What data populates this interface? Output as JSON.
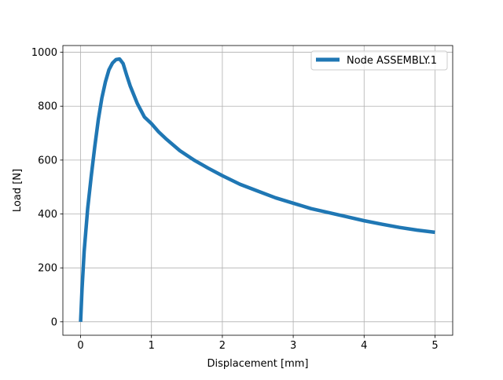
{
  "chart_data": {
    "type": "line",
    "title": "",
    "xlabel": "Displacement [mm]",
    "ylabel": "Load [N]",
    "xlim": [
      -0.25,
      5.25
    ],
    "ylim": [
      -50,
      1025
    ],
    "xticks": [
      0,
      1,
      2,
      3,
      4,
      5
    ],
    "yticks": [
      0,
      200,
      400,
      600,
      800,
      1000
    ],
    "xtick_labels": [
      "0",
      "1",
      "2",
      "3",
      "4",
      "5"
    ],
    "ytick_labels": [
      "0",
      "200",
      "400",
      "600",
      "800",
      "1000"
    ],
    "grid": true,
    "legend_position": "top-right",
    "series": [
      {
        "name": "Node ASSEMBLY.1",
        "color": "#1f77b4",
        "x": [
          0,
          0.02,
          0.05,
          0.1,
          0.15,
          0.2,
          0.25,
          0.3,
          0.35,
          0.4,
          0.45,
          0.5,
          0.55,
          0.6,
          0.65,
          0.7,
          0.8,
          0.9,
          1.0,
          1.1,
          1.2,
          1.4,
          1.6,
          1.8,
          2.0,
          2.25,
          2.5,
          2.75,
          3.0,
          3.25,
          3.5,
          3.75,
          4.0,
          4.25,
          4.5,
          4.75,
          5.0
        ],
        "y": [
          0,
          120,
          260,
          420,
          540,
          650,
          750,
          830,
          890,
          935,
          960,
          973,
          975,
          958,
          915,
          875,
          810,
          760,
          735,
          705,
          680,
          635,
          600,
          570,
          542,
          510,
          485,
          460,
          440,
          420,
          405,
          390,
          375,
          362,
          350,
          340,
          332
        ]
      }
    ]
  }
}
